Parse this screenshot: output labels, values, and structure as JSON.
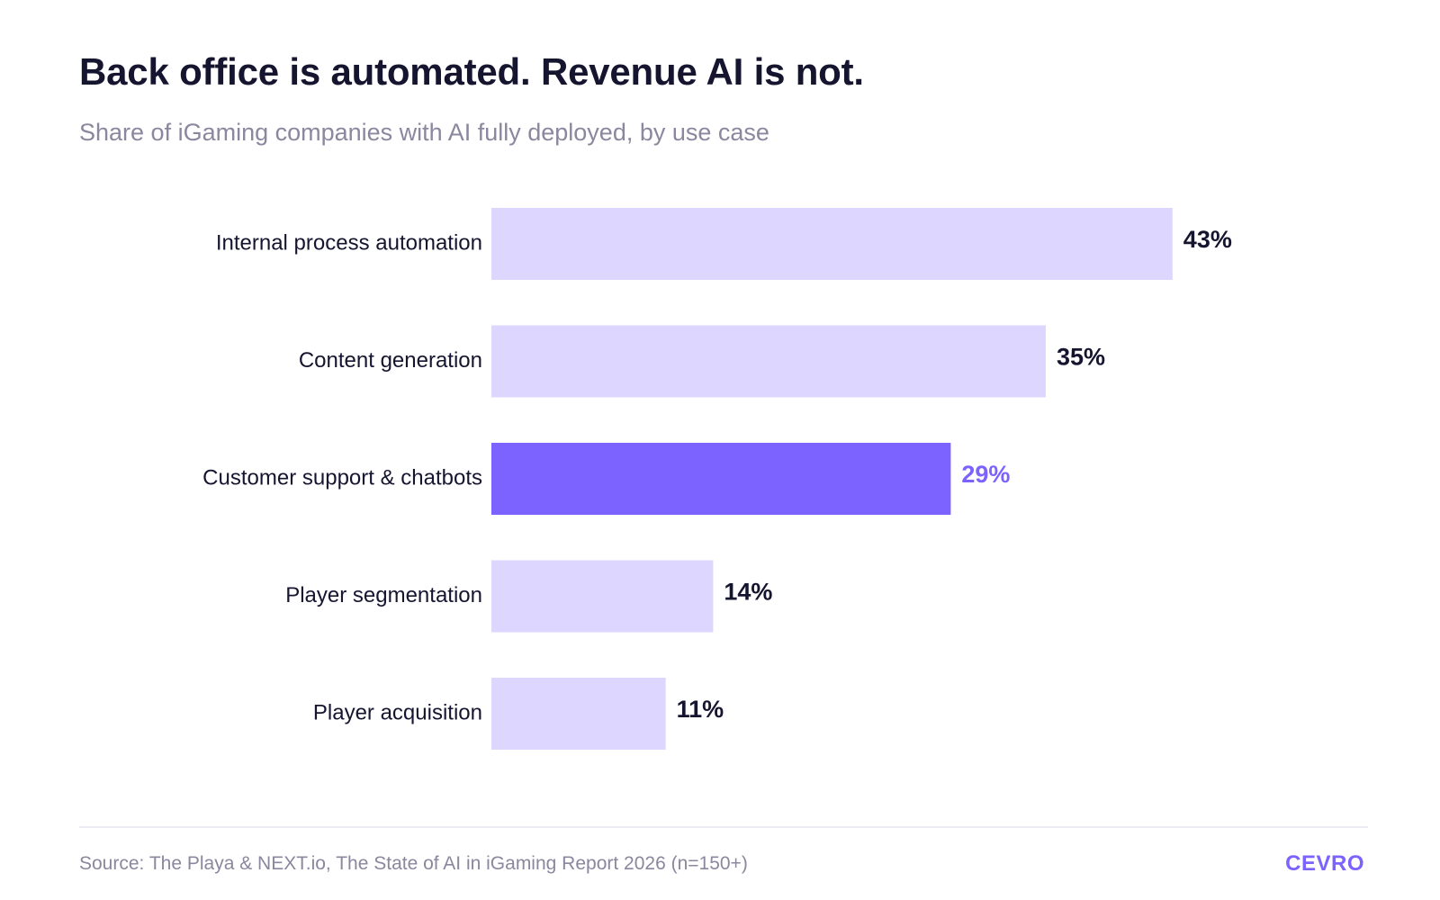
{
  "header": {
    "title": "Back office is automated. Revenue AI is not.",
    "subtitle": "Share of iGaming companies with AI fully deployed, by use case"
  },
  "chart_data": {
    "type": "bar",
    "orientation": "horizontal",
    "categories": [
      "Internal process automation",
      "Content generation",
      "Customer support & chatbots",
      "Player segmentation",
      "Player acquisition"
    ],
    "values": [
      43,
      35,
      29,
      14,
      11
    ],
    "value_labels": [
      "43%",
      "35%",
      "29%",
      "14%",
      "11%"
    ],
    "highlighted_category": "Customer support & chatbots",
    "xlim": [
      0,
      60
    ],
    "unit": "%",
    "grid": false,
    "legend": "none",
    "colors": {
      "bar": "#ddd6fe",
      "highlight": "#7c62ff",
      "label": "#161530",
      "highlight_label": "#7c62ff"
    }
  },
  "footer": {
    "source": "Source: The Playa & NEXT.io, The State of AI in iGaming Report 2026 (n=150+)",
    "brand": "CEVRO",
    "brand_color": "#7c62ff"
  }
}
